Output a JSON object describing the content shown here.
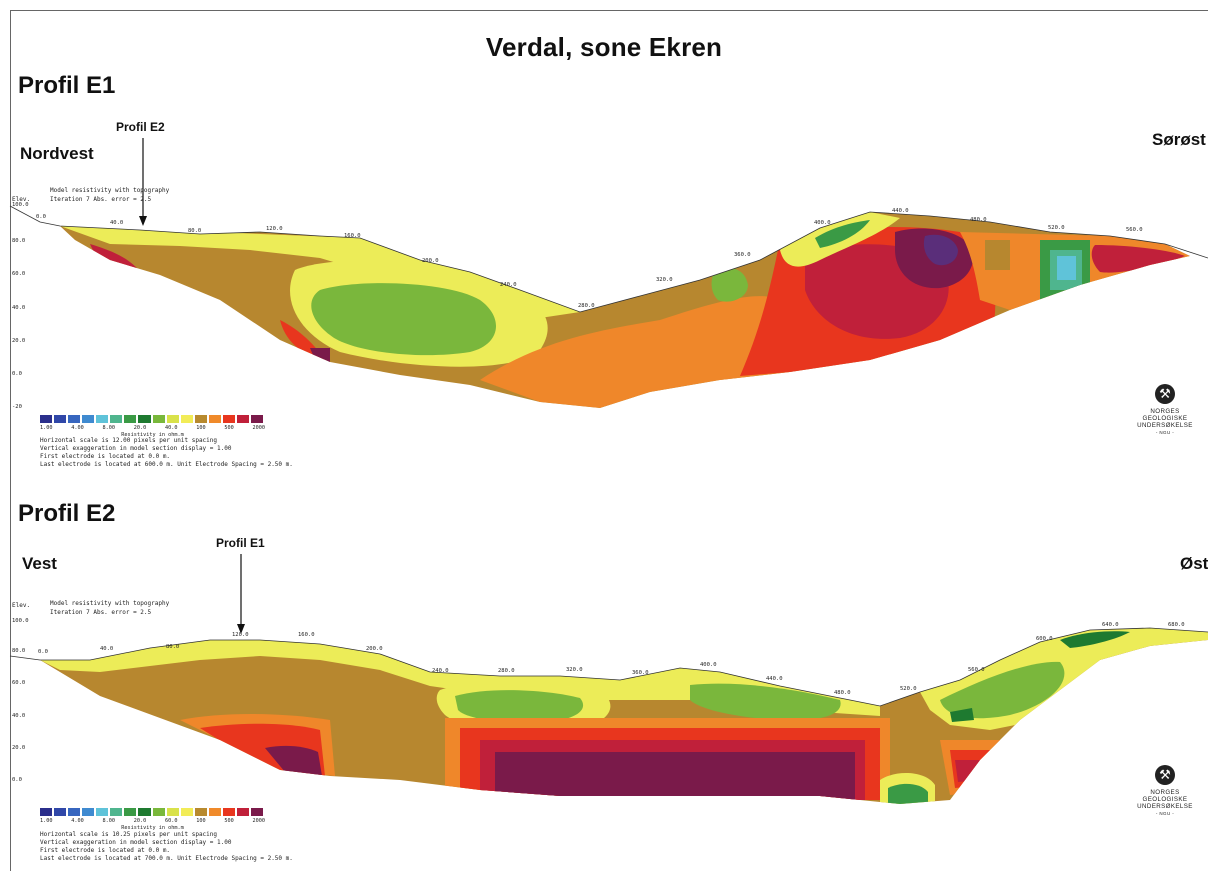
{
  "title": "Verdal, sone Ekren",
  "logo": {
    "icon": "crossed-hammers-icon",
    "lines": [
      "NORGES",
      "GEOLOGISKE",
      "UNDERSØKELSE",
      "- NGU -"
    ]
  },
  "colorscale": [
    "#2b2f8c",
    "#3047a8",
    "#3766bf",
    "#3f8ad0",
    "#5fc3d9",
    "#4fb58e",
    "#3a9a45",
    "#1e7a30",
    "#79b83b",
    "#d9e24a",
    "#f2ec57",
    "#b88a2e",
    "#f08a2a",
    "#e8361e",
    "#c0203a",
    "#7a1a4a"
  ],
  "profiles": [
    {
      "heading": "Profil E1",
      "dir_left": "Nordvest",
      "dir_right": "Sørøst",
      "marker_label": "Profil E2",
      "section_title": "Model resistivity with topography",
      "iteration": "Iteration 7 Abs. error = 2.5",
      "elev_label": "Elev.",
      "elev_ticks": [
        "100.0",
        "80.0",
        "60.0",
        "40.0",
        "20.0",
        "0.0",
        "-20"
      ],
      "dist_ticks": [
        "0.0",
        "40.0",
        "80.0",
        "120.0",
        "160.0",
        "200.0",
        "240.0",
        "280.0",
        "320.0",
        "360.0",
        "400.0",
        "440.0",
        "480.0",
        "520.0",
        "560.0"
      ],
      "scale_ticks": [
        "1.00",
        "4.00",
        "8.00",
        "20.0",
        "40.0",
        "100",
        "500",
        "2000"
      ],
      "scale_label": "Resistivity in ohm.m",
      "notes": [
        "Horizontal scale is 12.00 pixels per unit spacing",
        "Vertical exaggeration in model section display = 1.00",
        "First electrode is located at 0.0 m.",
        "Last electrode is located at 600.0 m.    Unit Electrode Spacing = 2.50 m."
      ]
    },
    {
      "heading": "Profil E2",
      "dir_left": "Vest",
      "dir_right": "Øst",
      "marker_label": "Profil E1",
      "section_title": "Model resistivity with topography",
      "iteration": "Iteration 7 Abs. error = 2.5",
      "elev_label": "Elev.",
      "elev_ticks": [
        "100.0",
        "80.0",
        "60.0",
        "40.0",
        "20.0",
        "0.0"
      ],
      "dist_ticks": [
        "0.0",
        "40.0",
        "80.0",
        "120.0",
        "160.0",
        "200.0",
        "240.0",
        "280.0",
        "320.0",
        "360.0",
        "400.0",
        "440.0",
        "480.0",
        "520.0",
        "560.0",
        "600.0",
        "640.0",
        "680.0"
      ],
      "scale_ticks": [
        "1.00",
        "4.00",
        "8.00",
        "20.0",
        "60.0",
        "100",
        "500",
        "2000"
      ],
      "scale_label": "Resistivity in ohm.m",
      "notes": [
        "Horizontal scale is 10.25 pixels per unit spacing",
        "Vertical exaggeration in model section display = 1.00",
        "First electrode is located at 0.0 m.",
        "Last electrode is located at 700.0 m.    Unit Electrode Spacing = 2.50 m."
      ]
    }
  ]
}
